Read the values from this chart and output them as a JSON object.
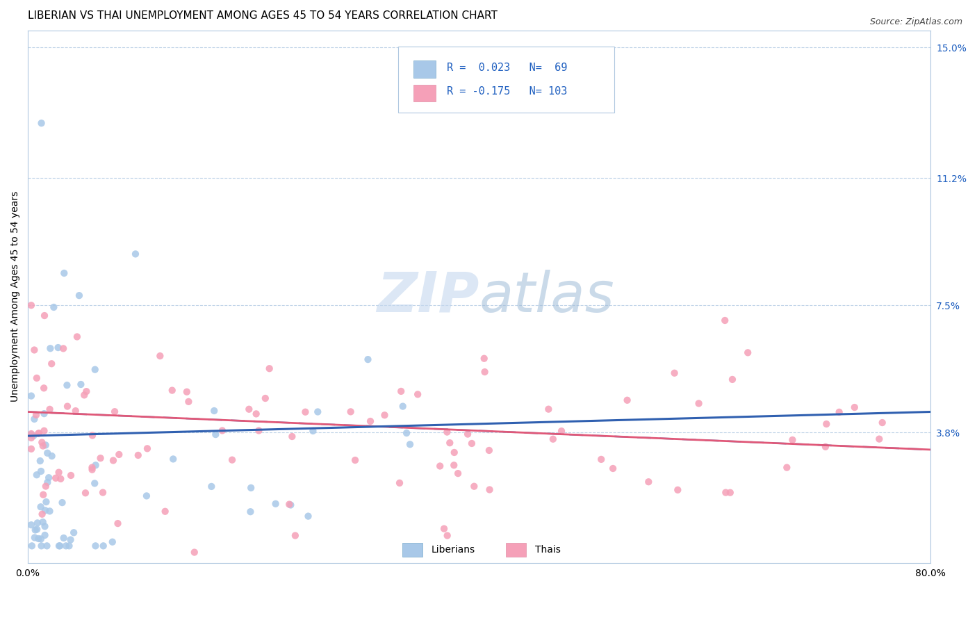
{
  "title": "LIBERIAN VS THAI UNEMPLOYMENT AMONG AGES 45 TO 54 YEARS CORRELATION CHART",
  "source": "Source: ZipAtlas.com",
  "ylabel": "Unemployment Among Ages 45 to 54 years",
  "xlim": [
    0.0,
    0.8
  ],
  "ylim": [
    0.0,
    0.155
  ],
  "xtick_positions": [
    0.0,
    0.1,
    0.2,
    0.3,
    0.4,
    0.5,
    0.6,
    0.7,
    0.8
  ],
  "xticklabels": [
    "0.0%",
    "",
    "",
    "",
    "",
    "",
    "",
    "",
    "80.0%"
  ],
  "yticks_right": [
    0.0,
    0.038,
    0.075,
    0.112,
    0.15
  ],
  "ytick_right_labels": [
    "",
    "3.8%",
    "7.5%",
    "11.2%",
    "15.0%"
  ],
  "hlines": [
    0.038,
    0.075,
    0.112,
    0.15
  ],
  "liberian_color": "#a8c8e8",
  "thai_color": "#f5a0b8",
  "liberian_line_color": "#3060b0",
  "thai_line_color": "#e05878",
  "liberian_line_style": "solid",
  "thai_line_style": "dashed",
  "liberian_R": 0.023,
  "liberian_N": 69,
  "thai_R": -0.175,
  "thai_N": 103,
  "legend_text_color": "#2060c0",
  "background_color": "#ffffff",
  "title_fontsize": 11,
  "axis_label_fontsize": 10,
  "tick_fontsize": 10,
  "watermark_color": "#c8daf0",
  "hline_color": "#c0d4e8",
  "border_color": "#b0c8e0"
}
